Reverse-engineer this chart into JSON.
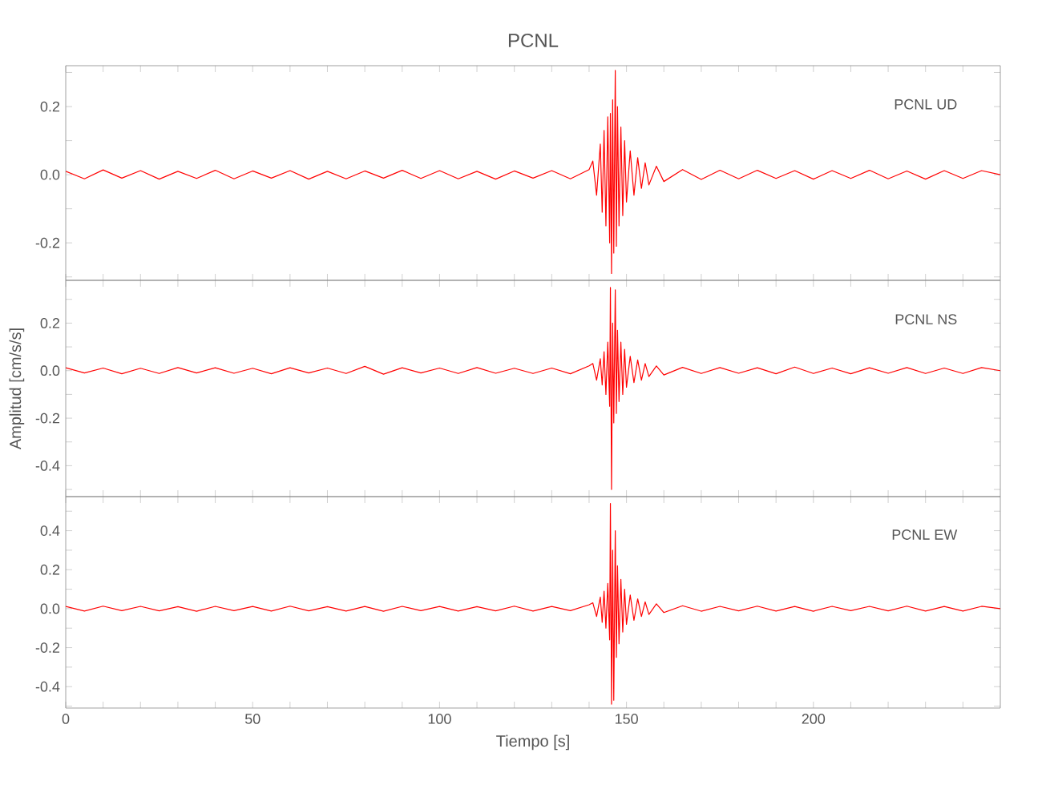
{
  "chart_data": [
    {
      "type": "line",
      "title": "PCNL",
      "annotations": [
        "PCNL    UD"
      ],
      "tick_labels": "y",
      "xlim": [
        0,
        250
      ],
      "ylim": [
        -0.31,
        0.32
      ],
      "xticks": [
        0,
        {
          "value": 10,
          "label": null
        },
        {
          "value": 20,
          "label": null
        },
        {
          "value": 30,
          "label": null
        },
        {
          "value": 40,
          "label": null
        },
        50,
        {
          "value": 60,
          "label": null
        },
        {
          "value": 70,
          "label": null
        },
        {
          "value": 80,
          "label": null
        },
        {
          "value": 90,
          "label": null
        },
        100,
        {
          "value": 110,
          "label": null
        },
        {
          "value": 120,
          "label": null
        },
        {
          "value": 130,
          "label": null
        },
        {
          "value": 140,
          "label": null
        },
        150,
        {
          "value": 160,
          "label": null
        },
        {
          "value": 170,
          "label": null
        },
        {
          "value": 180,
          "label": null
        },
        {
          "value": 190,
          "label": null
        },
        200,
        {
          "value": 210,
          "label": null
        },
        {
          "value": 220,
          "label": null
        },
        {
          "value": 230,
          "label": null
        },
        {
          "value": 240,
          "label": null
        }
      ],
      "yticks": [
        {
          "value": -0.3,
          "label": null
        },
        -0.2,
        {
          "value": -0.1,
          "label": null
        },
        {
          "value": 0,
          "label": "0.0"
        },
        {
          "value": 0.1,
          "label": null
        },
        0.2,
        {
          "value": 0.3,
          "label": null
        }
      ],
      "x": [
        0,
        5,
        10,
        15,
        20,
        25,
        30,
        35,
        40,
        45,
        50,
        55,
        60,
        65,
        70,
        75,
        80,
        85,
        90,
        95,
        100,
        105,
        110,
        115,
        120,
        125,
        130,
        135,
        140,
        141,
        142,
        143,
        143.5,
        144,
        144.5,
        145,
        145.5,
        145.7,
        146,
        146.3,
        146.6,
        147,
        147.3,
        147.6,
        148,
        148.5,
        149,
        149.5,
        150,
        151,
        152,
        153,
        154,
        155,
        156,
        158,
        160,
        165,
        170,
        175,
        180,
        185,
        190,
        195,
        200,
        205,
        210,
        215,
        220,
        225,
        230,
        235,
        240,
        245,
        250
      ],
      "series": [
        {
          "color": "#ff0000",
          "values": [
            0.01,
            -0.012,
            0.014,
            -0.01,
            0.012,
            -0.013,
            0.01,
            -0.011,
            0.013,
            -0.012,
            0.011,
            -0.01,
            0.012,
            -0.013,
            0.01,
            -0.012,
            0.011,
            -0.01,
            0.013,
            -0.011,
            0.012,
            -0.012,
            0.01,
            -0.013,
            0.011,
            -0.01,
            0.012,
            -0.012,
            0.015,
            0.04,
            -0.06,
            0.09,
            -0.11,
            0.13,
            -0.15,
            0.17,
            -0.2,
            0.18,
            -0.29,
            0.22,
            -0.23,
            0.306,
            -0.21,
            0.2,
            -0.15,
            0.14,
            -0.12,
            0.1,
            -0.08,
            0.07,
            -0.06,
            0.05,
            -0.04,
            0.035,
            -0.03,
            0.025,
            -0.02,
            0.015,
            -0.014,
            0.013,
            -0.012,
            0.013,
            -0.011,
            0.012,
            -0.013,
            0.012,
            -0.011,
            0.013,
            -0.012,
            0.011,
            -0.013,
            0.012,
            -0.011,
            0.012,
            0.0
          ]
        }
      ]
    },
    {
      "type": "line",
      "ylabel": "Amplitud  [cm/s/s]",
      "annotations": [
        "PCNL    NS"
      ],
      "tick_labels": "y",
      "xlim": [
        0,
        250
      ],
      "ylim": [
        -0.53,
        0.38
      ],
      "xticks": [
        0,
        {
          "value": 10,
          "label": null
        },
        {
          "value": 20,
          "label": null
        },
        {
          "value": 30,
          "label": null
        },
        {
          "value": 40,
          "label": null
        },
        50,
        {
          "value": 60,
          "label": null
        },
        {
          "value": 70,
          "label": null
        },
        {
          "value": 80,
          "label": null
        },
        {
          "value": 90,
          "label": null
        },
        100,
        {
          "value": 110,
          "label": null
        },
        {
          "value": 120,
          "label": null
        },
        {
          "value": 130,
          "label": null
        },
        {
          "value": 140,
          "label": null
        },
        150,
        {
          "value": 160,
          "label": null
        },
        {
          "value": 170,
          "label": null
        },
        {
          "value": 180,
          "label": null
        },
        {
          "value": 190,
          "label": null
        },
        200,
        {
          "value": 210,
          "label": null
        },
        {
          "value": 220,
          "label": null
        },
        {
          "value": 230,
          "label": null
        },
        {
          "value": 240,
          "label": null
        }
      ],
      "yticks": [
        {
          "value": -0.5,
          "label": null
        },
        -0.4,
        {
          "value": -0.3,
          "label": null
        },
        -0.2,
        {
          "value": -0.1,
          "label": null
        },
        {
          "value": 0,
          "label": "0.0"
        },
        {
          "value": 0.1,
          "label": null
        },
        0.2,
        {
          "value": 0.3,
          "label": null
        }
      ],
      "x": [
        0,
        5,
        10,
        15,
        20,
        25,
        30,
        35,
        40,
        45,
        50,
        55,
        60,
        65,
        70,
        75,
        80,
        85,
        90,
        95,
        100,
        105,
        110,
        115,
        120,
        125,
        130,
        135,
        140,
        141,
        142,
        143,
        143.5,
        144,
        144.5,
        145,
        145.5,
        145.7,
        146,
        146.3,
        146.6,
        147,
        147.3,
        147.6,
        148,
        148.5,
        149,
        149.5,
        150,
        151,
        152,
        153,
        154,
        155,
        156,
        158,
        160,
        165,
        170,
        175,
        180,
        185,
        190,
        195,
        200,
        205,
        210,
        215,
        220,
        225,
        230,
        235,
        240,
        245,
        250
      ],
      "series": [
        {
          "color": "#ff0000",
          "values": [
            0.012,
            -0.01,
            0.011,
            -0.013,
            0.01,
            -0.012,
            0.013,
            -0.01,
            0.012,
            -0.011,
            0.01,
            -0.013,
            0.012,
            -0.01,
            0.011,
            -0.012,
            0.018,
            -0.015,
            0.012,
            -0.01,
            0.011,
            -0.012,
            0.013,
            -0.011,
            0.01,
            -0.012,
            0.011,
            -0.013,
            0.02,
            0.03,
            -0.04,
            0.05,
            -0.06,
            0.08,
            -0.1,
            0.12,
            -0.15,
            0.35,
            -0.5,
            0.2,
            -0.22,
            0.34,
            -0.18,
            0.17,
            -0.13,
            0.12,
            -0.1,
            0.09,
            -0.07,
            0.06,
            -0.05,
            0.045,
            -0.04,
            0.03,
            -0.025,
            0.02,
            -0.018,
            0.014,
            -0.012,
            0.013,
            -0.011,
            0.012,
            -0.013,
            0.015,
            -0.012,
            0.011,
            -0.013,
            0.012,
            -0.011,
            0.013,
            -0.012,
            0.011,
            -0.012,
            0.013,
            0.0
          ]
        }
      ]
    },
    {
      "type": "line",
      "xlabel": "Tiempo  [s]",
      "annotations": [
        "PCNL    EW"
      ],
      "xlim": [
        0,
        250
      ],
      "ylim": [
        -0.51,
        0.575
      ],
      "xticks": [
        0,
        {
          "value": 10,
          "label": null
        },
        {
          "value": 20,
          "label": null
        },
        {
          "value": 30,
          "label": null
        },
        {
          "value": 40,
          "label": null
        },
        50,
        {
          "value": 60,
          "label": null
        },
        {
          "value": 70,
          "label": null
        },
        {
          "value": 80,
          "label": null
        },
        {
          "value": 90,
          "label": null
        },
        100,
        {
          "value": 110,
          "label": null
        },
        {
          "value": 120,
          "label": null
        },
        {
          "value": 130,
          "label": null
        },
        {
          "value": 140,
          "label": null
        },
        150,
        {
          "value": 160,
          "label": null
        },
        {
          "value": 170,
          "label": null
        },
        {
          "value": 180,
          "label": null
        },
        {
          "value": 190,
          "label": null
        },
        200,
        {
          "value": 210,
          "label": null
        },
        {
          "value": 220,
          "label": null
        },
        {
          "value": 230,
          "label": null
        },
        {
          "value": 240,
          "label": null
        }
      ],
      "yticks": [
        {
          "value": -0.5,
          "label": null
        },
        -0.4,
        {
          "value": -0.3,
          "label": null
        },
        -0.2,
        {
          "value": -0.1,
          "label": null
        },
        {
          "value": 0,
          "label": "0.0"
        },
        {
          "value": 0.1,
          "label": null
        },
        0.2,
        {
          "value": 0.3,
          "label": null
        },
        0.4,
        {
          "value": 0.5,
          "label": null
        }
      ],
      "x": [
        0,
        5,
        10,
        15,
        20,
        25,
        30,
        35,
        40,
        45,
        50,
        55,
        60,
        65,
        70,
        75,
        80,
        85,
        90,
        95,
        100,
        105,
        110,
        115,
        120,
        125,
        130,
        135,
        140,
        141,
        142,
        143,
        143.5,
        144,
        144.5,
        145,
        145.5,
        145.7,
        146,
        146.3,
        146.6,
        147,
        147.3,
        147.6,
        148,
        148.5,
        149,
        149.5,
        150,
        151,
        152,
        153,
        154,
        155,
        156,
        158,
        160,
        165,
        170,
        175,
        180,
        185,
        190,
        195,
        200,
        205,
        210,
        215,
        220,
        225,
        230,
        235,
        240,
        245,
        250
      ],
      "series": [
        {
          "color": "#ff0000",
          "values": [
            0.011,
            -0.012,
            0.013,
            -0.01,
            0.012,
            -0.011,
            0.01,
            -0.013,
            0.012,
            -0.01,
            0.011,
            -0.012,
            0.013,
            -0.011,
            0.01,
            -0.012,
            0.011,
            -0.013,
            0.012,
            -0.01,
            0.011,
            -0.012,
            0.01,
            -0.011,
            0.013,
            -0.012,
            0.011,
            -0.01,
            0.02,
            0.03,
            -0.04,
            0.06,
            -0.07,
            0.09,
            -0.1,
            0.13,
            -0.16,
            0.54,
            -0.49,
            0.3,
            -0.47,
            0.4,
            -0.25,
            0.22,
            -0.18,
            0.15,
            -0.12,
            0.1,
            -0.08,
            0.07,
            -0.06,
            0.05,
            -0.04,
            0.035,
            -0.03,
            0.025,
            -0.02,
            0.015,
            -0.013,
            0.012,
            -0.011,
            0.013,
            -0.012,
            0.011,
            -0.013,
            0.012,
            -0.01,
            0.012,
            -0.011,
            0.013,
            -0.012,
            0.011,
            -0.012,
            0.012,
            0.0
          ]
        }
      ]
    }
  ]
}
